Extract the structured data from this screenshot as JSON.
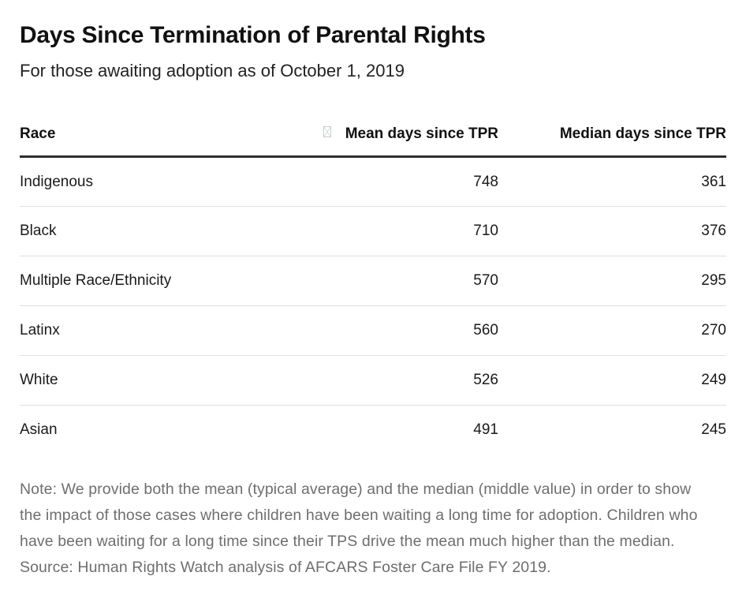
{
  "chart_data": {
    "type": "table",
    "title": "Days Since Termination of Parental Rights",
    "subtitle": "For those awaiting adoption as of October 1, 2019",
    "columns": [
      "Race",
      "Mean days since TPR",
      "Median days since TPR"
    ],
    "rows": [
      {
        "race": "Indigenous",
        "mean": "748",
        "median": "361"
      },
      {
        "race": "Black",
        "mean": "710",
        "median": "376"
      },
      {
        "race": "Multiple Race/Ethnicity",
        "mean": "570",
        "median": "295"
      },
      {
        "race": "Latinx",
        "mean": "560",
        "median": "270"
      },
      {
        "race": "White",
        "mean": "526",
        "median": "249"
      },
      {
        "race": "Asian",
        "mean": "491",
        "median": "245"
      }
    ],
    "note_lines": [
      "Note: We provide both the mean (typical average) and the median (middle value) in order to show",
      "the impact of those cases where children have been waiting a long time for adoption. Children who",
      "have been waiting for a long time since their TPS drive the mean much higher than the median.",
      "Source: Human Rights Watch analysis of AFCARS Foster Care File FY 2019."
    ],
    "layout_hints": {
      "grid": "horizontal row separators only",
      "header_rule": "thick dark",
      "numeric_alignment": "right"
    }
  },
  "icons": {
    "missing_glyph": "missing-glyph-box-icon"
  },
  "colors": {
    "title_text": "#111111",
    "body_text": "#1a1a1a",
    "note_text": "#6e6e6e",
    "rule_dark": "#2e2e2e",
    "rule_light": "#dfdfdf",
    "tofu_gray": "#c7ccd1",
    "background": "#ffffff"
  }
}
